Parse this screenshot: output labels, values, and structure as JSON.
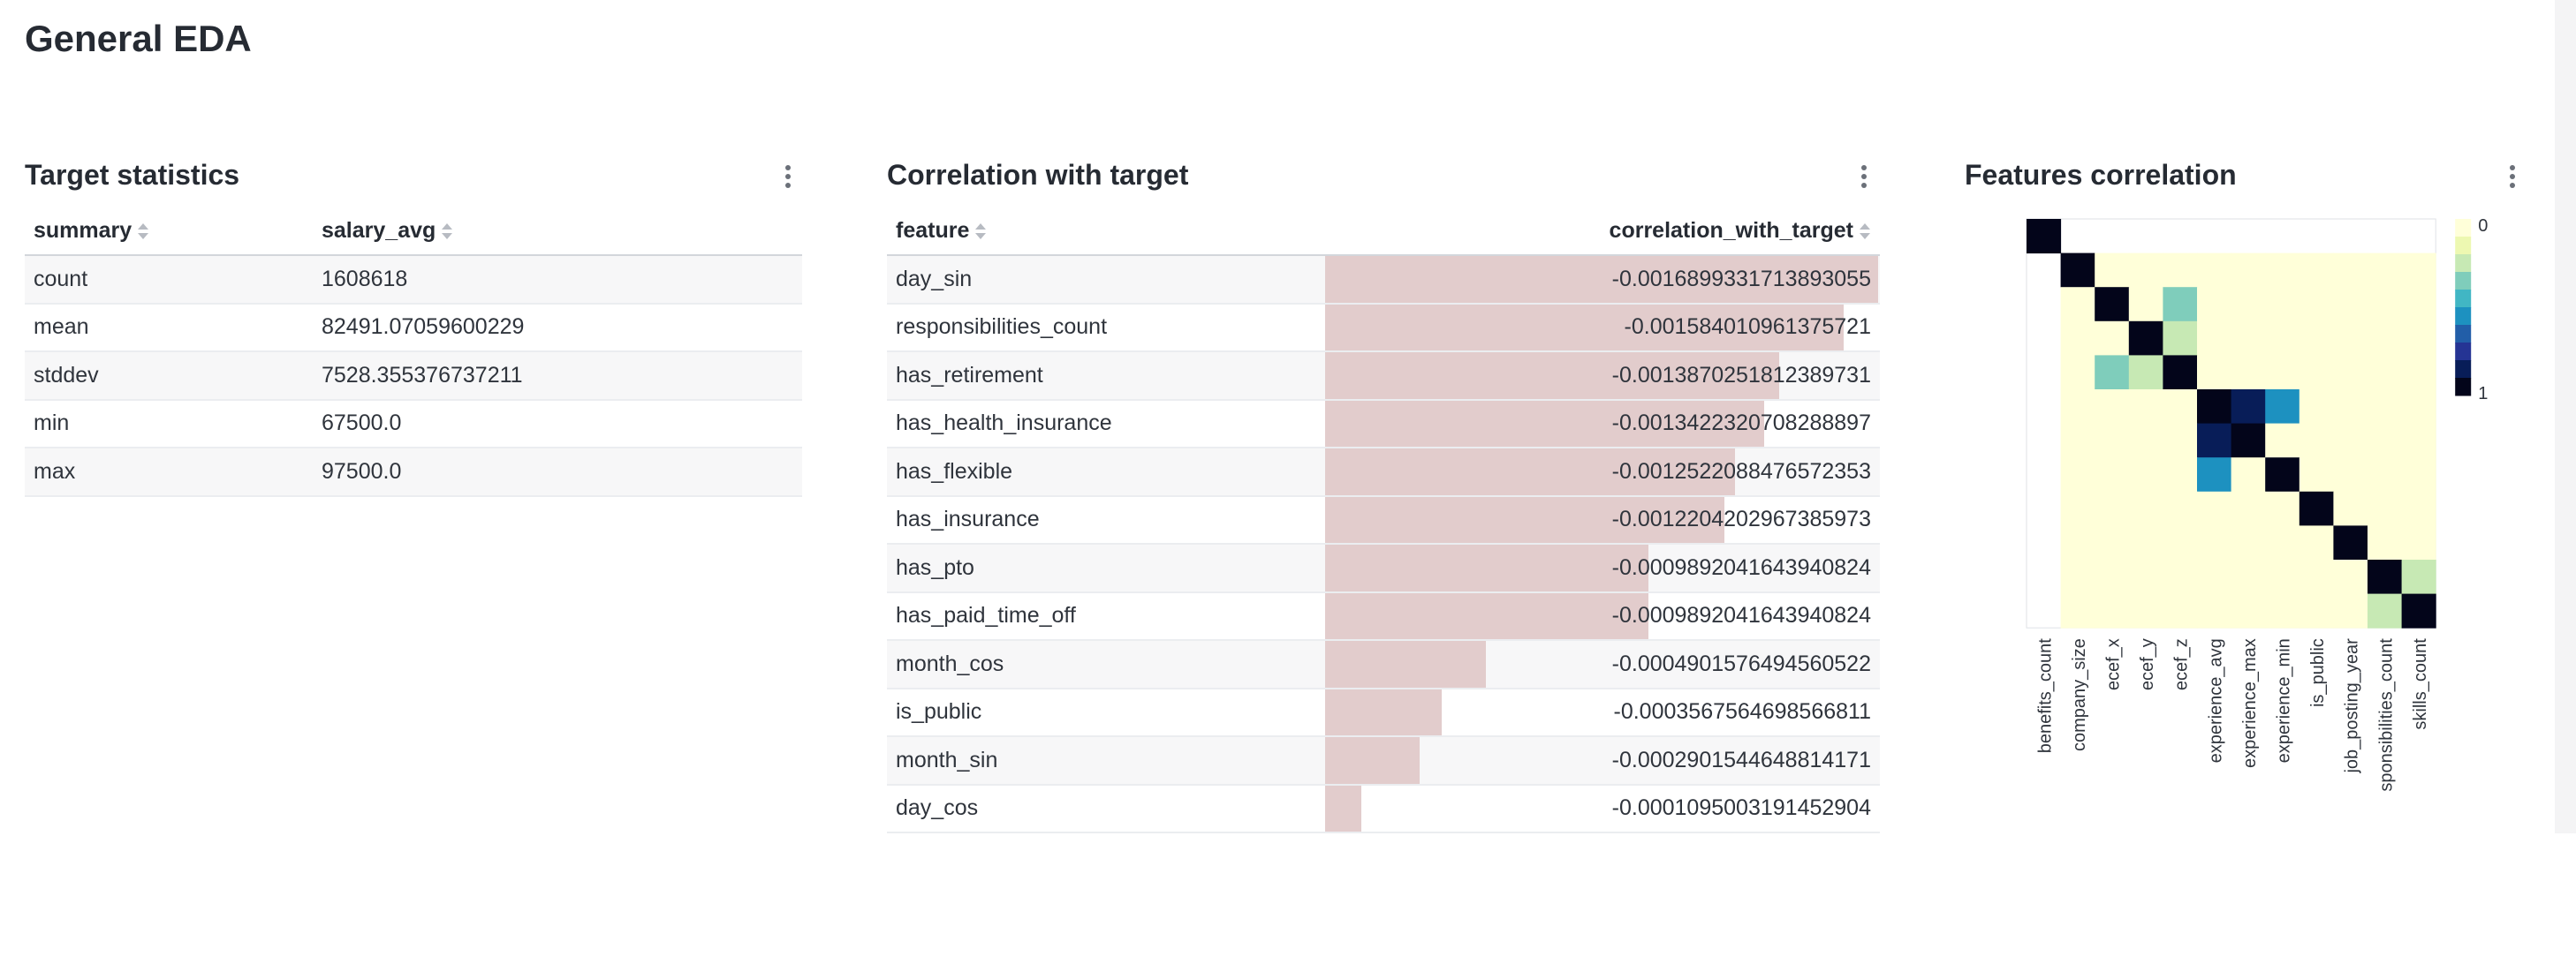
{
  "page": {
    "title": "General EDA"
  },
  "target_stats": {
    "title": "Target statistics",
    "columns": [
      "summary",
      "salary_avg"
    ],
    "rows": [
      [
        "count",
        "1608618"
      ],
      [
        "mean",
        "82491.07059600229"
      ],
      [
        "stddev",
        "7528.355376737211"
      ],
      [
        "min",
        "67500.0"
      ],
      [
        "max",
        "97500.0"
      ]
    ]
  },
  "correlation": {
    "title": "Correlation with target",
    "columns": [
      "feature",
      "correlation_with_target"
    ],
    "bar_color": "#e2cccc",
    "rows": [
      {
        "feature": "day_sin",
        "value": "-0.0016899331713893055",
        "magnitude": 0.00168993
      },
      {
        "feature": "responsibilities_count",
        "value": "-0.0015840109613757​21",
        "magnitude": 0.00158401
      },
      {
        "feature": "has_retirement",
        "value": "-0.0013870251812389731",
        "magnitude": 0.00138703
      },
      {
        "feature": "has_health_insurance",
        "value": "-0.0013422320708288897",
        "magnitude": 0.00134223
      },
      {
        "feature": "has_flexible",
        "value": "-0.0012522088476572353",
        "magnitude": 0.00125221
      },
      {
        "feature": "has_insurance",
        "value": "-0.0012204202967385973",
        "magnitude": 0.00122042
      },
      {
        "feature": "has_pto",
        "value": "-0.0009892041643940824",
        "magnitude": 0.0009892
      },
      {
        "feature": "has_paid_time_off",
        "value": "-0.0009892041643940824",
        "magnitude": 0.0009892
      },
      {
        "feature": "month_cos",
        "value": "-0.0004901576494560522",
        "magnitude": 0.00049016
      },
      {
        "feature": "is_public",
        "value": "-0.0003567564698566811",
        "magnitude": 0.00035676
      },
      {
        "feature": "month_sin",
        "value": "-0.0002901544648814171",
        "magnitude": 0.00029015
      },
      {
        "feature": "day_cos",
        "value": "-0.00010950031914529​04",
        "magnitude": 0.0001095
      }
    ]
  },
  "features_corr": {
    "title": "Features correlation",
    "colorbar": {
      "min_label": "0",
      "max_label": "1"
    },
    "colors": [
      "#ffffd9",
      "#edf8b1",
      "#c7e9b4",
      "#7fcdbb",
      "#41b6c4",
      "#1d91c0",
      "#225ea8",
      "#253494",
      "#081d58",
      "#03051a"
    ]
  },
  "chart_data": {
    "type": "heatmap",
    "title": "Features correlation",
    "x": [
      "benefits_count",
      "company_size",
      "ecef_x",
      "ecef_y",
      "ecef_z",
      "experience_avg",
      "experience_max",
      "experience_min",
      "is_public",
      "job_posting_year",
      "sponsibilities_count",
      "skills_count"
    ],
    "y": [
      "benefits_count",
      "company_size",
      "ecef_x",
      "ecef_y",
      "ecef_z",
      "experience_avg",
      "experience_max",
      "experience_min",
      "is_public",
      "job_posting_year",
      "sponsibilities_count",
      "skills_count"
    ],
    "colorbar_range": [
      0,
      1
    ],
    "colorbar_labels": [
      "0",
      "1"
    ],
    "values": [
      [
        1,
        null,
        null,
        null,
        null,
        null,
        null,
        null,
        null,
        null,
        null,
        null
      ],
      [
        null,
        1,
        0.05,
        0.05,
        0.05,
        0.05,
        0.05,
        0.05,
        0.05,
        0.05,
        0.05,
        0.05
      ],
      [
        null,
        0.05,
        1,
        0.02,
        0.35,
        0.05,
        0.05,
        0.05,
        0.05,
        0.05,
        0.05,
        0.05
      ],
      [
        null,
        0.05,
        0.02,
        1,
        0.2,
        0.05,
        0.05,
        0.05,
        0.05,
        0.05,
        0.05,
        0.05
      ],
      [
        null,
        0.05,
        0.35,
        0.2,
        1,
        0.05,
        0.05,
        0.05,
        0.05,
        0.05,
        0.05,
        0.05
      ],
      [
        null,
        0.05,
        0.05,
        0.05,
        0.05,
        1,
        0.85,
        0.55,
        0.05,
        0.05,
        0.05,
        0.05
      ],
      [
        null,
        0.05,
        0.05,
        0.05,
        0.05,
        0.85,
        1,
        0.05,
        0.05,
        0.05,
        0.05,
        0.05
      ],
      [
        null,
        0.05,
        0.05,
        0.05,
        0.05,
        0.55,
        0.05,
        1,
        0.05,
        0.05,
        0.05,
        0.05
      ],
      [
        null,
        0.05,
        0.05,
        0.05,
        0.05,
        0.05,
        0.05,
        0.05,
        1,
        0.05,
        0.05,
        0.05
      ],
      [
        null,
        0.05,
        0.05,
        0.05,
        0.05,
        0.05,
        0.05,
        0.05,
        0.05,
        1,
        0.05,
        0.05
      ],
      [
        null,
        0.05,
        0.05,
        0.05,
        0.05,
        0.05,
        0.05,
        0.05,
        0.05,
        0.05,
        1,
        0.2
      ],
      [
        null,
        0.05,
        0.05,
        0.05,
        0.05,
        0.05,
        0.05,
        0.05,
        0.05,
        0.05,
        0.2,
        1
      ]
    ]
  }
}
